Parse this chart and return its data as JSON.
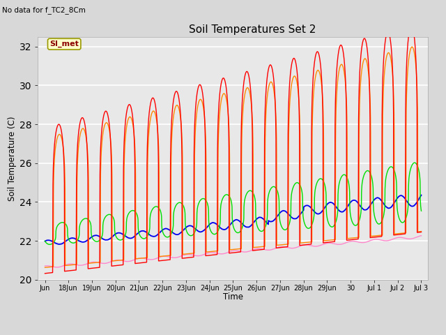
{
  "title": "Soil Temperatures Set 2",
  "ylabel": "Soil Temperature (C)",
  "xlabel": "Time",
  "no_data_text": "No data for f_TC2_8Cm",
  "legend_label": "SI_met",
  "ylim": [
    20,
    32.5
  ],
  "yticks": [
    20,
    22,
    24,
    26,
    28,
    30,
    32
  ],
  "series_colors": {
    "TC2_2Cm": "#ff0000",
    "TC2_4Cm": "#ff8800",
    "TC2_16Cm": "#00dd00",
    "TC2_32Cm": "#0000ee",
    "TC2_50Cm": "#ff88cc"
  },
  "fig_bg_color": "#d8d8d8",
  "plot_bg_color": "#e8e8e8",
  "grid_color": "#ffffff",
  "xtick_labels": [
    "Jun",
    "18Jun",
    "19Jun",
    "20Jun",
    "21Jun",
    "22Jun",
    "23Jun",
    "24Jun",
    "25Jun",
    "26Jun",
    "27Jun",
    "28Jun",
    "29Jun",
    "30",
    "Jul 1",
    "Jul 2",
    "Jul 3"
  ],
  "xtick_positions": [
    0,
    1,
    2,
    3,
    4,
    5,
    6,
    7,
    8,
    9,
    10,
    11,
    12,
    13,
    14,
    15,
    16
  ]
}
